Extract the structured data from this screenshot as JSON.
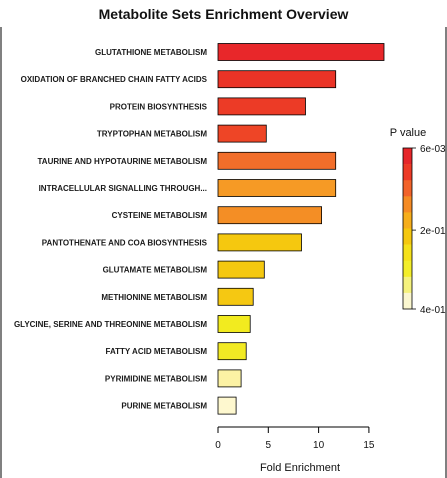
{
  "chart_data": {
    "type": "bar",
    "orientation": "horizontal",
    "title": "Metabolite Sets Enrichment Overview",
    "xlabel": "Fold Enrichment",
    "ylabel": "",
    "xlim": [
      0,
      16.5
    ],
    "xticks": [
      0,
      5,
      10,
      15
    ],
    "grid": false,
    "categories": [
      "GLUTATHIONE METABOLISM",
      "OXIDATION OF BRANCHED CHAIN FATTY ACIDS",
      "PROTEIN BIOSYNTHESIS",
      "TRYPTOPHAN METABOLISM",
      "TAURINE AND HYPOTAURINE METABOLISM",
      "INTRACELLULAR SIGNALLING THROUGH...",
      "CYSTEINE METABOLISM",
      "PANTOTHENATE AND COA BIOSYNTHESIS",
      "GLUTAMATE METABOLISM",
      "METHIONINE METABOLISM",
      "GLYCINE, SERINE AND THREONINE METABOLISM",
      "FATTY ACID METABOLISM",
      "PYRIMIDINE METABOLISM",
      "PURINE METABOLISM"
    ],
    "values": [
      16.5,
      11.7,
      8.7,
      4.8,
      11.7,
      11.7,
      10.3,
      8.3,
      4.6,
      3.5,
      3.2,
      2.8,
      2.3,
      1.8
    ],
    "bar_colors": [
      "#e8272a",
      "#ea3326",
      "#ec3b26",
      "#ee4526",
      "#f26e2a",
      "#f69a25",
      "#f48e25",
      "#f5c80f",
      "#f4c810",
      "#f5c812",
      "#f2eb1f",
      "#f2ea24",
      "#fcf2a4",
      "#fef8cf"
    ],
    "legend": {
      "title": "P value",
      "placement": "right",
      "tick_labels": [
        "6e-03",
        "2e-01",
        "4e-01"
      ],
      "colors": [
        "#e6262a",
        "#ed3a26",
        "#f2632a",
        "#f58b24",
        "#f6ae1b",
        "#f5c80f",
        "#f5e11a",
        "#f3ee2a",
        "#f5f27d",
        "#fbf7cf"
      ]
    }
  }
}
